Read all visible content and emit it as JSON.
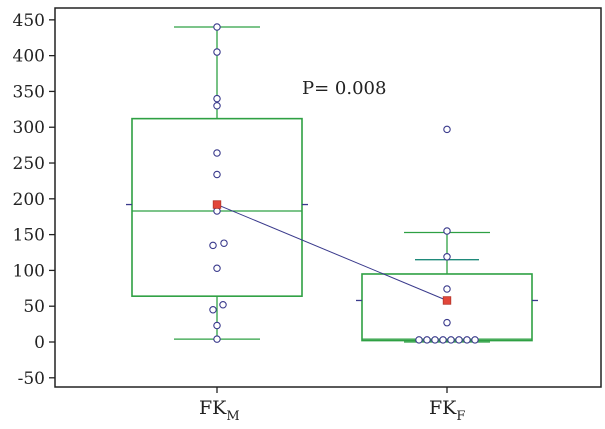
{
  "chart_data": {
    "type": "box",
    "ylim": [
      -50,
      450
    ],
    "yticks": [
      -50,
      0,
      50,
      100,
      150,
      200,
      250,
      300,
      350,
      400,
      450
    ],
    "grid": false,
    "categories": [
      {
        "main": "FK",
        "sub": "M"
      },
      {
        "main": "FK",
        "sub": "F"
      }
    ],
    "annotation": "P= 0.008",
    "colors": {
      "box": "#2ea043",
      "point_fill": "#ffffff",
      "point_stroke": "#3a3a8c",
      "mean": "#e2463a",
      "mean_line": "#3a3a8c",
      "mean_tick": "#3a3a8c",
      "axis": "#222222",
      "upper_whisker_F": "#1f8a7a"
    },
    "boxes": [
      {
        "q1": 64,
        "median": 183,
        "q3": 312,
        "whisker_low": 4,
        "whisker_high": 440,
        "mean": 192,
        "points": [
          440,
          405,
          340,
          330,
          264,
          234,
          183,
          138,
          135,
          103,
          52,
          45,
          23,
          4
        ]
      },
      {
        "q1": 2,
        "median": 4,
        "q3": 95,
        "whisker_low": 0,
        "whisker_high": 153,
        "inner_whisker": 115,
        "mean": 58,
        "points": [
          297,
          155,
          119,
          74,
          27,
          3,
          3,
          3,
          3,
          3,
          3,
          3,
          3
        ]
      }
    ]
  }
}
